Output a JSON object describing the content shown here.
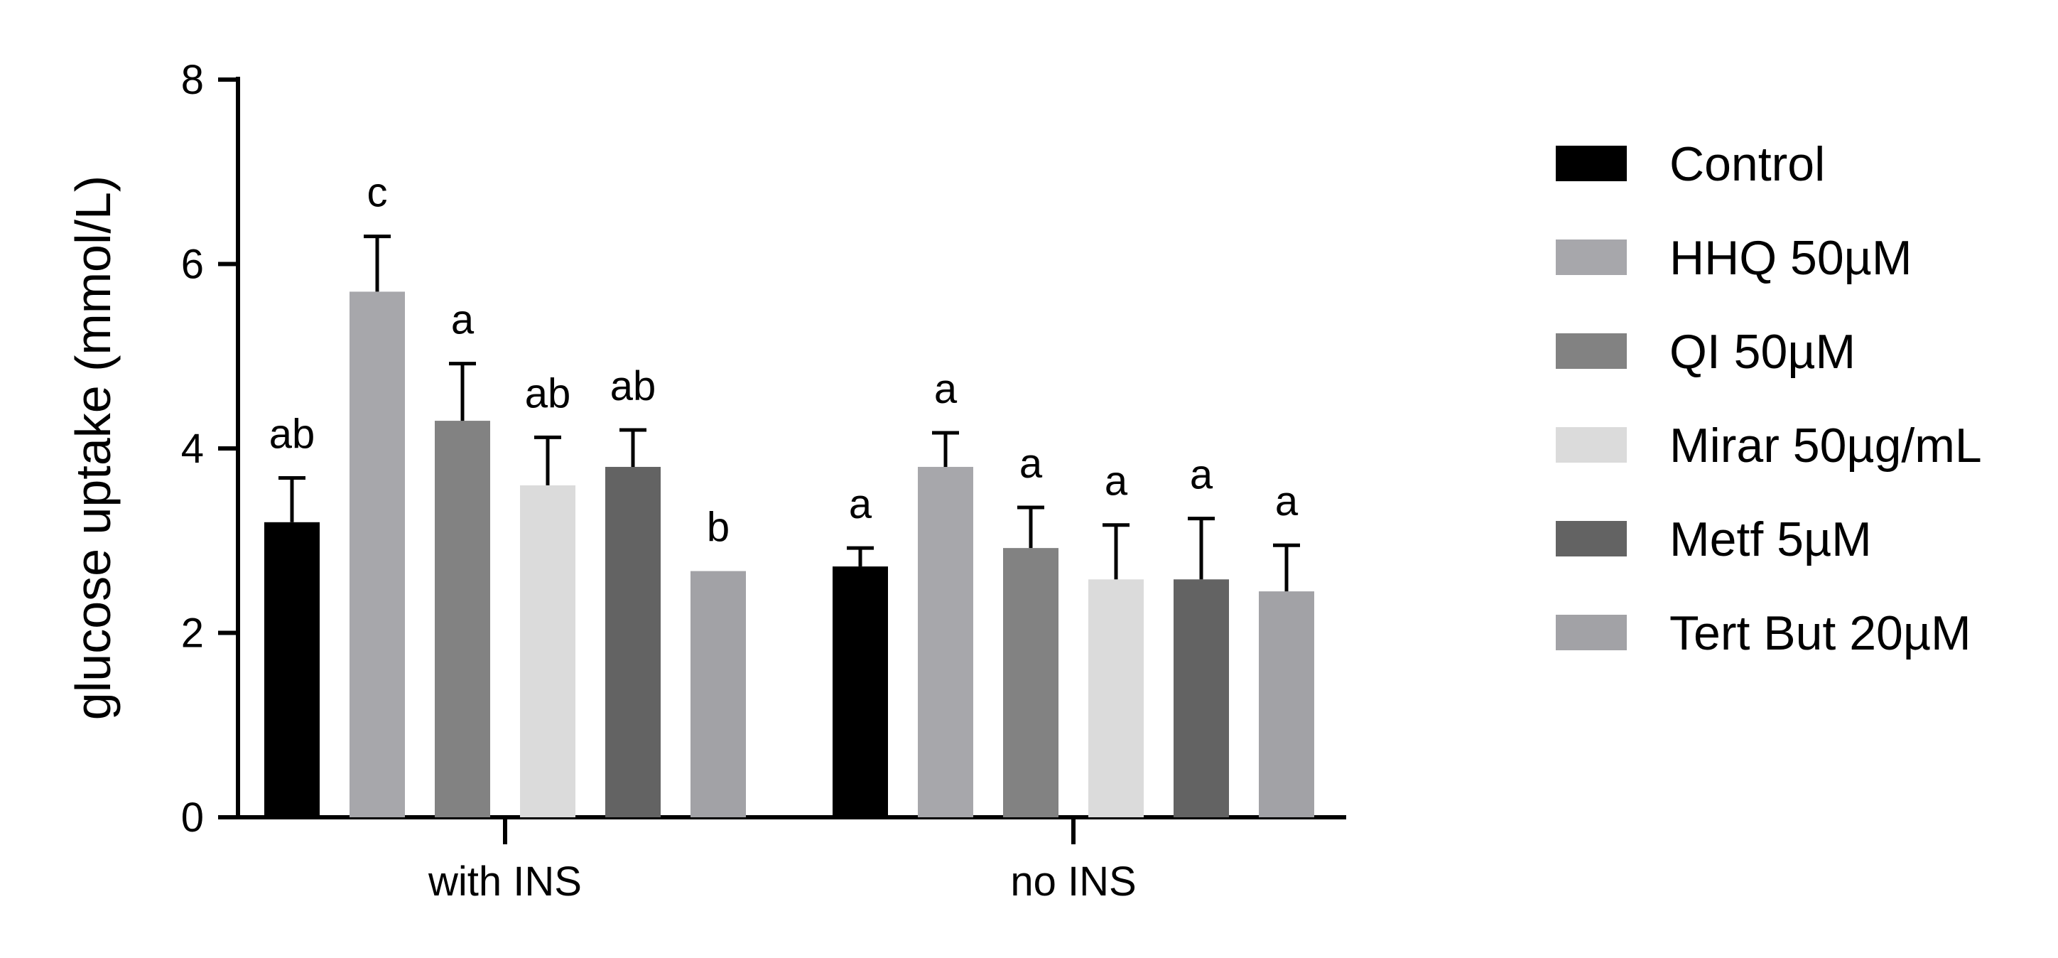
{
  "chart_data": {
    "type": "bar",
    "title": "",
    "xlabel": "",
    "ylabel": "glucose uptake (mmol/L)",
    "ylim": [
      0,
      8
    ],
    "yticks": [
      0,
      2,
      4,
      6,
      8
    ],
    "grid": false,
    "legend_position": "right",
    "categories": [
      "with INS",
      "no INS"
    ],
    "series": [
      {
        "name": "Control",
        "color": "#000000",
        "values": [
          3.2,
          2.72
        ],
        "errors": [
          0.48,
          0.2
        ],
        "labels": [
          "ab",
          "a"
        ]
      },
      {
        "name": "HHQ 50µM",
        "color": "#a7a7ab",
        "values": [
          5.7,
          3.8
        ],
        "errors": [
          0.6,
          0.37
        ],
        "labels": [
          "c",
          "a"
        ]
      },
      {
        "name": "QI 50µM",
        "color": "#828282",
        "values": [
          4.3,
          2.92
        ],
        "errors": [
          0.62,
          0.44
        ],
        "labels": [
          "a",
          "a"
        ]
      },
      {
        "name": "Mirar 50µg/mL",
        "color": "#dbdbdb",
        "values": [
          3.6,
          2.58
        ],
        "errors": [
          0.52,
          0.59
        ],
        "labels": [
          "ab",
          "a"
        ]
      },
      {
        "name": "Metf 5µM",
        "color": "#636363",
        "values": [
          3.8,
          2.58
        ],
        "errors": [
          0.4,
          0.66
        ],
        "labels": [
          "ab",
          "a"
        ]
      },
      {
        "name": "Tert But 20µM",
        "color": "#a2a2a6",
        "values": [
          2.67,
          2.45
        ],
        "errors": [
          0.0,
          0.5
        ],
        "labels": [
          "b",
          "a"
        ]
      }
    ]
  }
}
